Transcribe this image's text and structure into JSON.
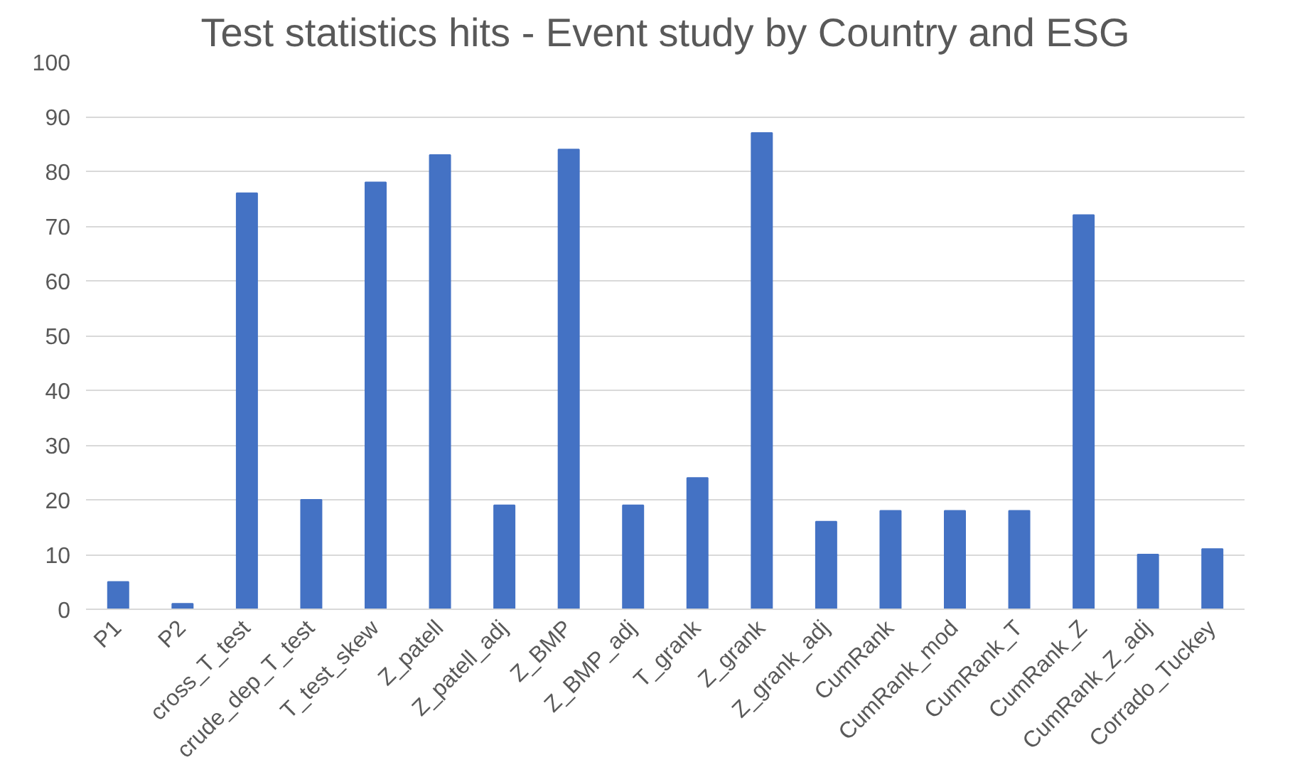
{
  "chart_data": {
    "type": "bar",
    "title": "Test statistics hits - Event study by Country and ESG",
    "categories": [
      "P1",
      "P2",
      "cross_T_test",
      "crude_dep_T_test",
      "T_test_skew",
      "Z_patell",
      "Z_patell_adj",
      "Z_BMP",
      "Z_BMP_adj",
      "T_grank",
      "Z_grank",
      "Z_grank_adj",
      "CumRank",
      "CumRank_mod",
      "CumRank_T",
      "CumRank_Z",
      "CumRank_Z_adj",
      "Corrado_Tuckey"
    ],
    "values": [
      5,
      1,
      76,
      20,
      78,
      83,
      19,
      84,
      19,
      24,
      87,
      16,
      18,
      18,
      18,
      72,
      10,
      11
    ],
    "color": "#4472c4",
    "ylim": [
      0,
      100
    ],
    "yticks": [
      0,
      10,
      20,
      30,
      40,
      50,
      60,
      70,
      80,
      90,
      100
    ],
    "grid": "y"
  }
}
